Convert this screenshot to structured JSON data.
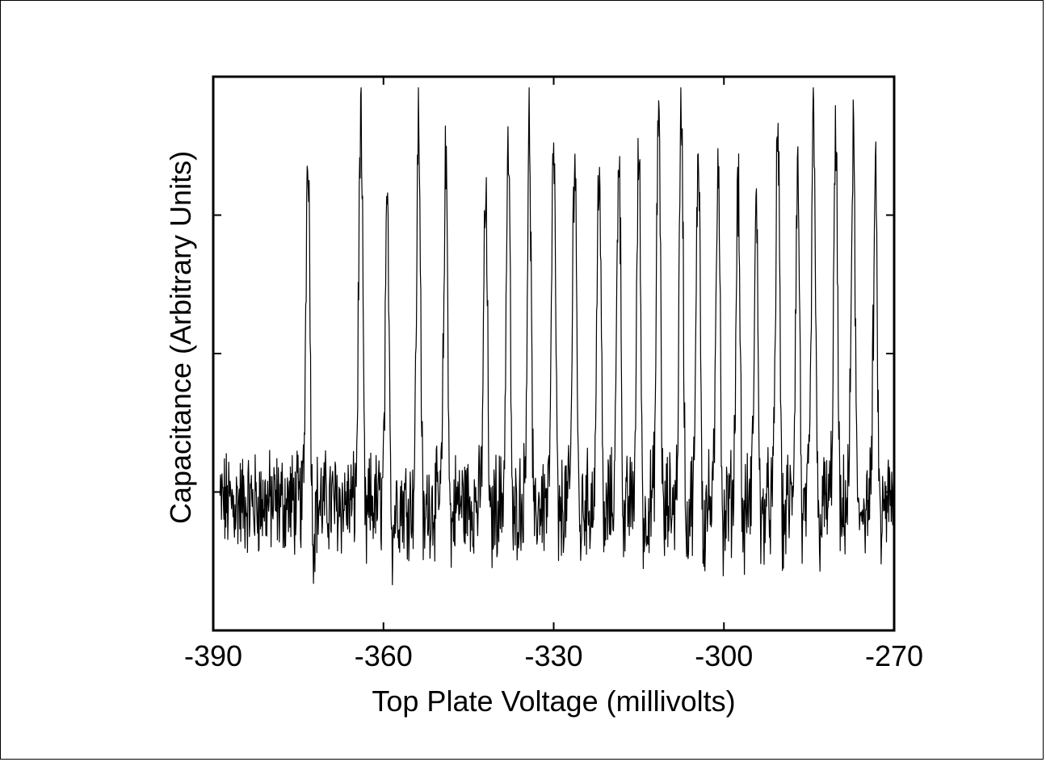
{
  "chart_data": {
    "type": "line",
    "title": "",
    "xlabel": "Top Plate Voltage (millivolts)",
    "ylabel": "Capacitance (Arbitrary Units)",
    "xlim": [
      -390,
      -270
    ],
    "ylim": [
      0,
      1
    ],
    "x_ticks": [
      -390,
      -360,
      -330,
      -300,
      -270
    ],
    "x_tick_labels": [
      "-390",
      "-360",
      "-330",
      "-300",
      "-270"
    ],
    "y_ticks": [
      0.25,
      0.5,
      0.75
    ],
    "y_tick_labels": [],
    "grid": false,
    "line_color": "#000000",
    "baseline": 0.23,
    "peaks": [
      {
        "x": -373.3,
        "y": 0.89
      },
      {
        "x": -364.0,
        "y": 0.94
      },
      {
        "x": -359.3,
        "y": 0.75
      },
      {
        "x": -353.8,
        "y": 0.92
      },
      {
        "x": -349.0,
        "y": 0.85
      },
      {
        "x": -342.0,
        "y": 0.78
      },
      {
        "x": -338.0,
        "y": 0.87
      },
      {
        "x": -334.3,
        "y": 0.9
      },
      {
        "x": -330.0,
        "y": 0.88
      },
      {
        "x": -326.3,
        "y": 0.89
      },
      {
        "x": -322.0,
        "y": 0.86
      },
      {
        "x": -318.5,
        "y": 0.88
      },
      {
        "x": -315.0,
        "y": 0.87
      },
      {
        "x": -311.5,
        "y": 0.95
      },
      {
        "x": -307.5,
        "y": 0.95
      },
      {
        "x": -304.5,
        "y": 0.88
      },
      {
        "x": -301.0,
        "y": 0.88
      },
      {
        "x": -297.5,
        "y": 0.82
      },
      {
        "x": -294.3,
        "y": 0.76
      },
      {
        "x": -290.5,
        "y": 0.92
      },
      {
        "x": -287.0,
        "y": 0.83
      },
      {
        "x": -284.2,
        "y": 0.93
      },
      {
        "x": -280.3,
        "y": 0.88
      },
      {
        "x": -277.2,
        "y": 0.88
      },
      {
        "x": -273.3,
        "y": 0.8
      }
    ]
  }
}
